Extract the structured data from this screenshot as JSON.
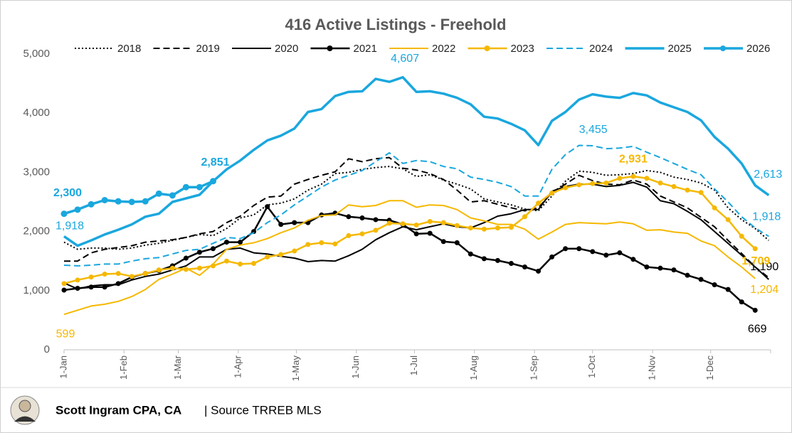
{
  "chart_data": {
    "type": "line",
    "title": "416 Active Listings - Freehold",
    "x": [
      0,
      7,
      14,
      21,
      28,
      35,
      42,
      49,
      56,
      63,
      70,
      77,
      84,
      91,
      98,
      105,
      112,
      119,
      126,
      133,
      140,
      147,
      154,
      161,
      168,
      175,
      182,
      189,
      196,
      203,
      210,
      217,
      224,
      231,
      238,
      245,
      252,
      259,
      266,
      273,
      280,
      287,
      294,
      301,
      308,
      315,
      322,
      329,
      336,
      343,
      350,
      357,
      364
    ],
    "xlim": [
      0,
      365
    ],
    "xticks": [
      {
        "value": 0,
        "label": "1-Jan"
      },
      {
        "value": 31,
        "label": "1-Feb"
      },
      {
        "value": 59,
        "label": "1-Mar"
      },
      {
        "value": 90,
        "label": "1-Apr"
      },
      {
        "value": 120,
        "label": "1-May"
      },
      {
        "value": 151,
        "label": "1-Jun"
      },
      {
        "value": 181,
        "label": "1-Jul"
      },
      {
        "value": 212,
        "label": "1-Aug"
      },
      {
        "value": 243,
        "label": "1-Sep"
      },
      {
        "value": 273,
        "label": "1-Oct"
      },
      {
        "value": 304,
        "label": "1-Nov"
      },
      {
        "value": 334,
        "label": "1-Dec"
      }
    ],
    "ylim": [
      0,
      5000
    ],
    "yticks": [
      0,
      {
        "value": 1000,
        "label": "1,000"
      },
      {
        "value": 2000,
        "label": "2,000"
      },
      {
        "value": 3000,
        "label": "3,000"
      },
      {
        "value": 4000,
        "label": "4,000"
      },
      {
        "value": 5000,
        "label": "5,000"
      }
    ],
    "grid": false,
    "legend": "top",
    "series": [
      {
        "name": "2018",
        "color": "#000000",
        "dash": "dotted",
        "marker": false,
        "width": 2,
        "values": [
          1820,
          1700,
          1720,
          1720,
          1700,
          1720,
          1770,
          1800,
          1850,
          1900,
          1950,
          1930,
          2050,
          2230,
          2280,
          2450,
          2480,
          2550,
          2700,
          2800,
          2980,
          3000,
          3050,
          3080,
          3100,
          3060,
          2930,
          2960,
          2870,
          2800,
          2720,
          2550,
          2500,
          2450,
          2380,
          2350,
          2600,
          2850,
          3020,
          3000,
          2950,
          2960,
          2980,
          3030,
          3000,
          2920,
          2880,
          2820,
          2700,
          2400,
          2200,
          2050,
          1850
        ]
      },
      {
        "name": "2019",
        "color": "#000000",
        "dash": "dashed",
        "marker": false,
        "width": 2,
        "values": [
          1500,
          1500,
          1640,
          1700,
          1730,
          1760,
          1820,
          1840,
          1860,
          1900,
          1960,
          2000,
          2150,
          2260,
          2440,
          2580,
          2600,
          2800,
          2880,
          2950,
          3010,
          3230,
          3180,
          3230,
          3250,
          3070,
          3040,
          2980,
          2880,
          2700,
          2500,
          2520,
          2460,
          2400,
          2350,
          2400,
          2660,
          2800,
          2950,
          2860,
          2800,
          2790,
          2870,
          2800,
          2600,
          2500,
          2400,
          2240,
          2080,
          1850,
          1630,
          1400,
          1220
        ]
      },
      {
        "name": "2020",
        "color": "#000000",
        "dash": "solid",
        "marker": false,
        "width": 2,
        "values": [
          1130,
          1030,
          1080,
          1100,
          1100,
          1180,
          1240,
          1280,
          1350,
          1420,
          1570,
          1570,
          1700,
          1720,
          1640,
          1620,
          1580,
          1550,
          1490,
          1510,
          1500,
          1590,
          1700,
          1860,
          1980,
          2080,
          2030,
          2080,
          2130,
          2080,
          2060,
          2150,
          2260,
          2300,
          2370,
          2370,
          2680,
          2760,
          2800,
          2800,
          2760,
          2780,
          2830,
          2750,
          2520,
          2470,
          2340,
          2200,
          2000,
          1800,
          1600,
          1400,
          1190
        ],
        "value_labels": [
          null,
          null,
          null,
          null,
          null,
          null,
          null,
          null,
          null,
          null,
          null,
          null,
          null,
          null,
          null,
          null,
          null,
          null,
          null,
          null,
          null,
          null,
          null,
          null,
          null,
          null,
          null,
          null,
          null,
          null,
          null,
          null,
          null,
          null,
          null,
          null,
          null,
          null,
          null,
          null,
          null,
          null,
          null,
          null,
          null,
          null,
          null,
          null,
          null,
          null,
          null,
          null,
          "1,190"
        ]
      },
      {
        "name": "2021",
        "color": "#000000",
        "dash": "solid",
        "marker": true,
        "width": 2.5,
        "values": [
          1010,
          1040,
          1060,
          1060,
          1120,
          1230,
          1290,
          1340,
          1420,
          1550,
          1650,
          1710,
          1820,
          1820,
          2000,
          2420,
          2120,
          2150,
          2150,
          2280,
          2310,
          2250,
          2230,
          2200,
          2190,
          2120,
          1960,
          1970,
          1830,
          1810,
          1620,
          1540,
          1510,
          1460,
          1400,
          1330,
          1570,
          1710,
          1710,
          1660,
          1600,
          1640,
          1530,
          1400,
          1380,
          1350,
          1260,
          1190,
          1100,
          1020,
          810,
          669,
          null
        ],
        "value_labels": [
          null,
          null,
          null,
          null,
          null,
          null,
          null,
          null,
          null,
          null,
          null,
          null,
          null,
          null,
          null,
          null,
          null,
          null,
          null,
          null,
          null,
          null,
          null,
          null,
          null,
          null,
          null,
          null,
          null,
          null,
          null,
          null,
          null,
          null,
          null,
          null,
          null,
          null,
          null,
          null,
          null,
          null,
          null,
          null,
          null,
          null,
          null,
          null,
          null,
          null,
          null,
          "669",
          null
        ]
      },
      {
        "name": "2022",
        "color": "#f5b800",
        "dash": "solid",
        "marker": false,
        "width": 2,
        "values": [
          599,
          670,
          740,
          770,
          820,
          900,
          1020,
          1190,
          1280,
          1380,
          1260,
          1450,
          1700,
          1770,
          1810,
          1880,
          1980,
          2060,
          2190,
          2270,
          2280,
          2450,
          2420,
          2440,
          2520,
          2520,
          2410,
          2450,
          2440,
          2370,
          2230,
          2180,
          2120,
          2120,
          2040,
          1870,
          1990,
          2120,
          2150,
          2140,
          2130,
          2160,
          2130,
          2020,
          2030,
          1990,
          1970,
          1840,
          1760,
          1570,
          1400,
          1204,
          null
        ],
        "value_labels": [
          "599",
          null,
          null,
          null,
          null,
          null,
          null,
          null,
          null,
          null,
          null,
          null,
          null,
          null,
          null,
          null,
          null,
          null,
          null,
          null,
          null,
          null,
          null,
          null,
          null,
          null,
          null,
          null,
          null,
          null,
          null,
          null,
          null,
          null,
          null,
          null,
          null,
          null,
          null,
          null,
          null,
          null,
          null,
          null,
          null,
          null,
          null,
          null,
          null,
          null,
          null,
          "1,204",
          null
        ]
      },
      {
        "name": "2023",
        "color": "#f5b800",
        "dash": "solid",
        "marker": true,
        "width": 2.5,
        "values": [
          1120,
          1180,
          1230,
          1280,
          1290,
          1240,
          1290,
          1350,
          1380,
          1360,
          1380,
          1420,
          1500,
          1450,
          1460,
          1570,
          1610,
          1670,
          1780,
          1810,
          1790,
          1930,
          1960,
          2020,
          2140,
          2130,
          2110,
          2170,
          2150,
          2100,
          2060,
          2040,
          2060,
          2070,
          2250,
          2480,
          2650,
          2740,
          2790,
          2810,
          2820,
          2900,
          2931,
          2900,
          2820,
          2760,
          2700,
          2660,
          2400,
          2200,
          1920,
          1709,
          null
        ],
        "value_labels": [
          null,
          null,
          null,
          null,
          null,
          null,
          null,
          null,
          null,
          null,
          null,
          null,
          null,
          null,
          null,
          null,
          null,
          null,
          null,
          null,
          null,
          null,
          null,
          null,
          null,
          null,
          null,
          null,
          null,
          null,
          null,
          null,
          null,
          null,
          null,
          null,
          null,
          null,
          null,
          null,
          null,
          null,
          "2,931",
          null,
          null,
          null,
          null,
          null,
          null,
          null,
          null,
          "1,709",
          null
        ]
      },
      {
        "name": "2024",
        "color": "#1aa7de",
        "dash": "dashed",
        "marker": false,
        "width": 2,
        "values": [
          1430,
          1420,
          1430,
          1450,
          1450,
          1500,
          1540,
          1560,
          1620,
          1680,
          1700,
          1800,
          1900,
          1880,
          1980,
          2150,
          2280,
          2450,
          2600,
          2750,
          2870,
          2950,
          3030,
          3180,
          3330,
          3150,
          3200,
          3180,
          3100,
          3060,
          2920,
          2880,
          2830,
          2760,
          2600,
          2600,
          3050,
          3300,
          3455,
          3450,
          3400,
          3410,
          3440,
          3340,
          3250,
          3150,
          3050,
          2960,
          2720,
          2500,
          2250,
          2060,
          1918
        ],
        "value_labels": [
          null,
          null,
          null,
          null,
          null,
          null,
          null,
          null,
          null,
          null,
          null,
          null,
          null,
          null,
          null,
          null,
          null,
          null,
          null,
          null,
          null,
          null,
          null,
          null,
          null,
          null,
          null,
          null,
          null,
          null,
          null,
          null,
          null,
          null,
          null,
          null,
          null,
          null,
          "3,455",
          null,
          null,
          null,
          null,
          null,
          null,
          null,
          null,
          null,
          null,
          null,
          null,
          null,
          "1,918"
        ]
      },
      {
        "name": "2025",
        "color": "#1aa7de",
        "dash": "solid",
        "marker": false,
        "width": 3.5,
        "values": [
          1918,
          1760,
          1850,
          1950,
          2030,
          2120,
          2250,
          2300,
          2500,
          2560,
          2620,
          2850,
          3050,
          3200,
          3380,
          3540,
          3620,
          3740,
          4020,
          4070,
          4290,
          4360,
          4370,
          4580,
          4530,
          4607,
          4360,
          4370,
          4330,
          4260,
          4150,
          3940,
          3910,
          3820,
          3710,
          3460,
          3870,
          4020,
          4230,
          4320,
          4280,
          4260,
          4340,
          4300,
          4180,
          4100,
          4020,
          3880,
          3600,
          3400,
          3150,
          2780,
          2613
        ],
        "value_labels": [
          "1,918",
          null,
          null,
          null,
          null,
          null,
          null,
          null,
          null,
          null,
          null,
          null,
          null,
          null,
          null,
          null,
          null,
          null,
          null,
          null,
          null,
          null,
          null,
          null,
          null,
          "4,607",
          null,
          null,
          null,
          null,
          null,
          null,
          null,
          null,
          null,
          null,
          null,
          null,
          null,
          null,
          null,
          null,
          null,
          null,
          null,
          null,
          null,
          null,
          null,
          null,
          null,
          null,
          "2,613"
        ]
      },
      {
        "name": "2026",
        "color": "#1aa7de",
        "dash": "solid",
        "marker": true,
        "width": 3.5,
        "values": [
          2300,
          2370,
          2460,
          2530,
          2510,
          2500,
          2510,
          2640,
          2610,
          2750,
          2750,
          2851,
          null,
          null,
          null,
          null,
          null,
          null,
          null,
          null,
          null,
          null,
          null,
          null,
          null,
          null,
          null,
          null,
          null,
          null,
          null,
          null,
          null,
          null,
          null,
          null,
          null,
          null,
          null,
          null,
          null,
          null,
          null,
          null,
          null,
          null,
          null,
          null,
          null,
          null,
          null,
          null,
          null
        ],
        "value_labels": [
          "2,300",
          null,
          null,
          null,
          null,
          null,
          null,
          null,
          null,
          null,
          null,
          "2,851",
          null,
          null,
          null,
          null,
          null,
          null,
          null,
          null,
          null,
          null,
          null,
          null,
          null,
          null,
          null,
          null,
          null,
          null,
          null,
          null,
          null,
          null,
          null,
          null,
          null,
          null,
          null,
          null,
          null,
          null,
          null,
          null,
          null,
          null,
          null,
          null,
          null,
          null,
          null,
          null,
          null
        ]
      }
    ],
    "footer": {
      "author": "Scott Ingram CPA, CA",
      "source": "| Source TRREB MLS"
    }
  }
}
